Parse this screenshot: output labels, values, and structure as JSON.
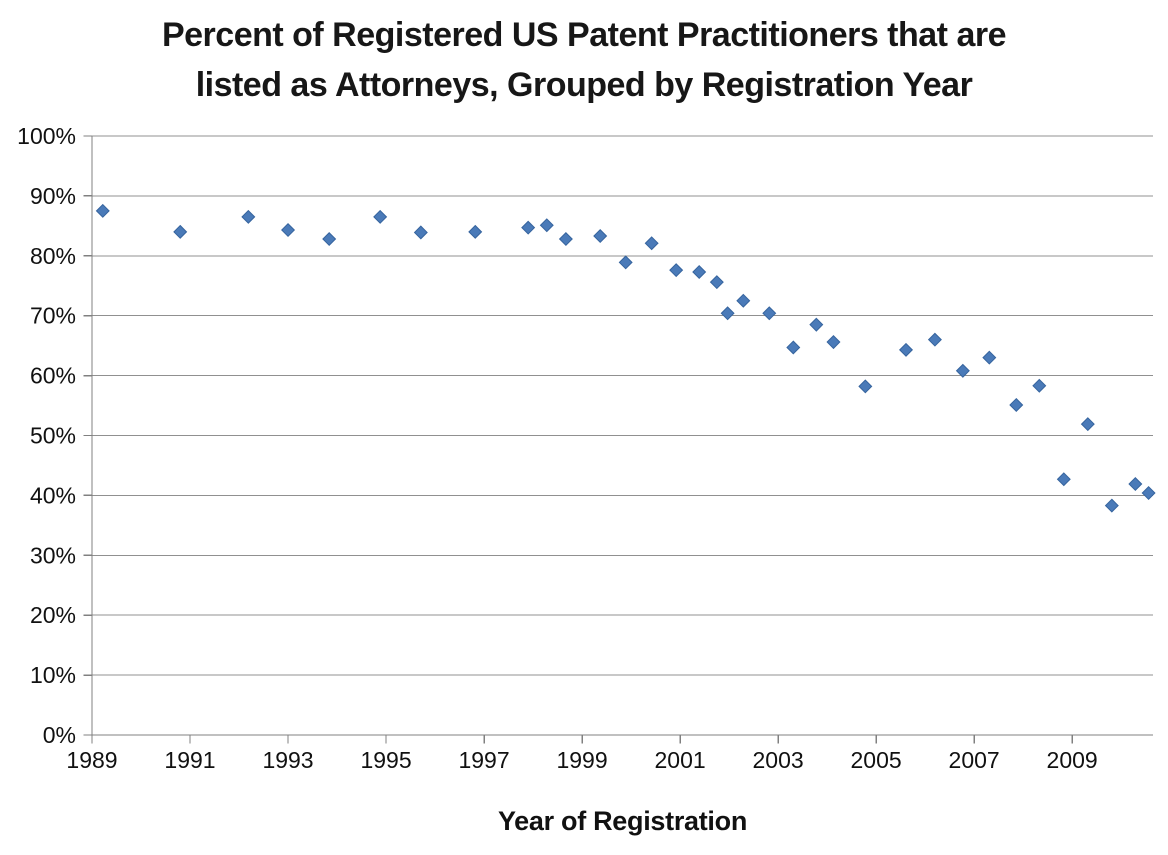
{
  "chart_data": {
    "type": "scatter",
    "title_lines": [
      "Percent of Registered US Patent Practitioners that are",
      "listed as Attorneys, Grouped by Registration Year"
    ],
    "xlabel": "Year of Registration",
    "ylabel": "",
    "legend": "none",
    "grid": "horizontal",
    "xlim": [
      1989,
      2010.65
    ],
    "ylim": [
      0,
      100
    ],
    "x_ticks": [
      1989,
      1991,
      1993,
      1995,
      1997,
      1999,
      2001,
      2003,
      2005,
      2007,
      2009
    ],
    "x_tick_labels": [
      "1989",
      "1991",
      "1993",
      "1995",
      "1997",
      "1999",
      "2001",
      "2003",
      "2005",
      "2007",
      "2009"
    ],
    "y_ticks": [
      0,
      10,
      20,
      30,
      40,
      50,
      60,
      70,
      80,
      90,
      100
    ],
    "y_tick_labels": [
      "0%",
      "10%",
      "20%",
      "30%",
      "40%",
      "50%",
      "60%",
      "70%",
      "80%",
      "90%",
      "100%"
    ],
    "marker": {
      "shape": "diamond",
      "size": 12.6
    },
    "style": {
      "marker_fill": "#4a7ab8",
      "marker_border": "#36649e",
      "gridline_color": "#909090",
      "axis_color": "#808080",
      "text_color": "#111111"
    },
    "points": [
      {
        "x": 1989.22,
        "y": 87.5
      },
      {
        "x": 1990.8,
        "y": 84.0
      },
      {
        "x": 1992.19,
        "y": 86.5
      },
      {
        "x": 1993.0,
        "y": 84.3
      },
      {
        "x": 1993.84,
        "y": 82.8
      },
      {
        "x": 1994.88,
        "y": 86.5
      },
      {
        "x": 1995.71,
        "y": 83.9
      },
      {
        "x": 1996.82,
        "y": 84.0
      },
      {
        "x": 1997.9,
        "y": 84.7
      },
      {
        "x": 1998.28,
        "y": 85.1
      },
      {
        "x": 1998.67,
        "y": 82.8
      },
      {
        "x": 1999.37,
        "y": 83.3
      },
      {
        "x": 1999.89,
        "y": 78.9
      },
      {
        "x": 2000.42,
        "y": 82.1
      },
      {
        "x": 2000.92,
        "y": 77.6
      },
      {
        "x": 2001.39,
        "y": 77.3
      },
      {
        "x": 2001.75,
        "y": 75.6
      },
      {
        "x": 2001.97,
        "y": 70.4
      },
      {
        "x": 2002.29,
        "y": 72.5
      },
      {
        "x": 2002.82,
        "y": 70.4
      },
      {
        "x": 2003.31,
        "y": 64.7
      },
      {
        "x": 2003.78,
        "y": 68.5
      },
      {
        "x": 2004.13,
        "y": 65.6
      },
      {
        "x": 2004.78,
        "y": 58.2
      },
      {
        "x": 2005.61,
        "y": 64.3
      },
      {
        "x": 2006.2,
        "y": 66.0
      },
      {
        "x": 2006.77,
        "y": 60.8
      },
      {
        "x": 2007.31,
        "y": 63.0
      },
      {
        "x": 2007.86,
        "y": 55.1
      },
      {
        "x": 2008.33,
        "y": 58.3
      },
      {
        "x": 2008.83,
        "y": 42.7
      },
      {
        "x": 2009.32,
        "y": 51.9
      },
      {
        "x": 2009.81,
        "y": 38.3
      },
      {
        "x": 2010.29,
        "y": 41.9
      },
      {
        "x": 2010.56,
        "y": 40.4
      }
    ]
  }
}
